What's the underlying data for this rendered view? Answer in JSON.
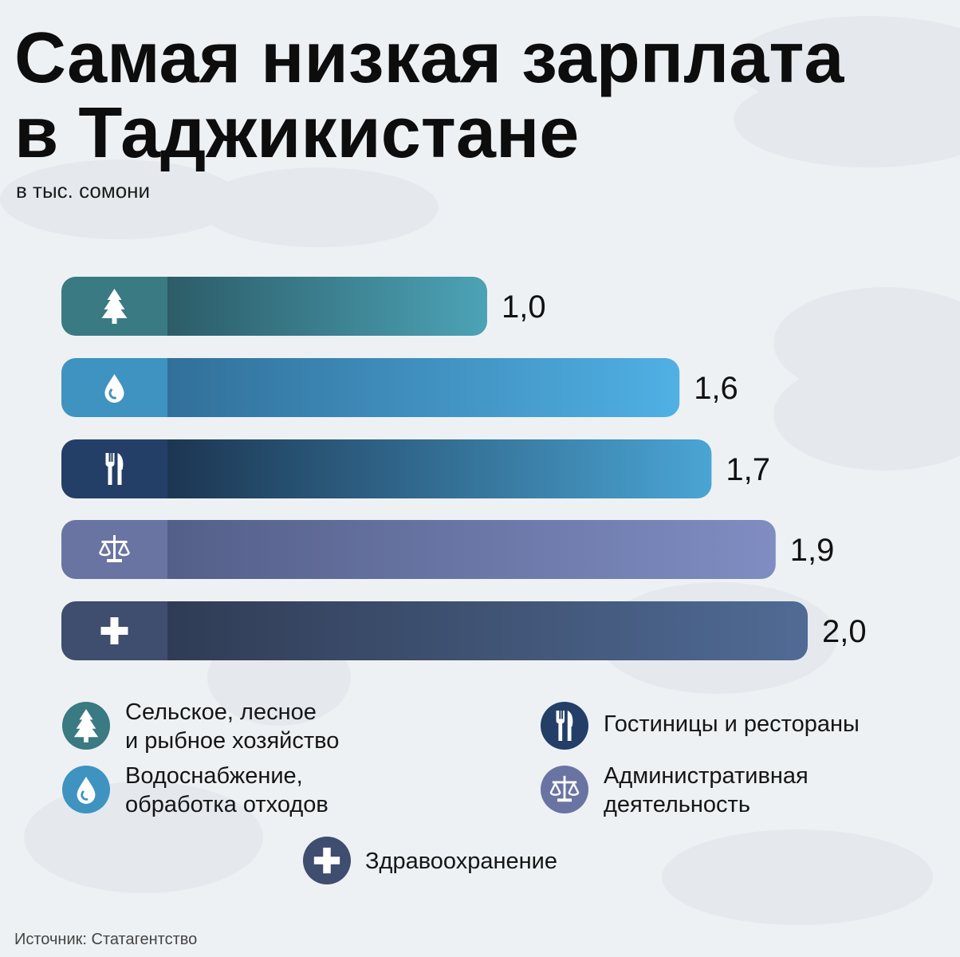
{
  "chart_data": {
    "type": "bar",
    "orientation": "horizontal",
    "title": "Самая низкая зарплата в Таджикистане",
    "subtitle": "в тыс. сомони",
    "categories": [
      "Сельское, лесное\nи рыбное хозяйство",
      "Водоснабжение,\nобработка отходов",
      "Гостиницы и рестораны",
      "Административная\nдеятельность",
      "Здравоохранение"
    ],
    "values": [
      1.0,
      1.6,
      1.7,
      1.9,
      2.0
    ],
    "value_labels": [
      "1,0",
      "1,6",
      "1,7",
      "1,9",
      "2,0"
    ],
    "colors": [
      "#3a7a82",
      "#3e93c0",
      "#233f68",
      "#6a74a3",
      "#3f4d6e"
    ],
    "gradients": [
      [
        "#2c5c68",
        "#4ca3b6"
      ],
      [
        "#31709a",
        "#50b0e4"
      ],
      [
        "#1c3652",
        "#4aa5d4"
      ],
      [
        "#545f89",
        "#808dc2"
      ],
      [
        "#303c55",
        "#506b95"
      ]
    ],
    "source": "Источник: Статагентство"
  }
}
